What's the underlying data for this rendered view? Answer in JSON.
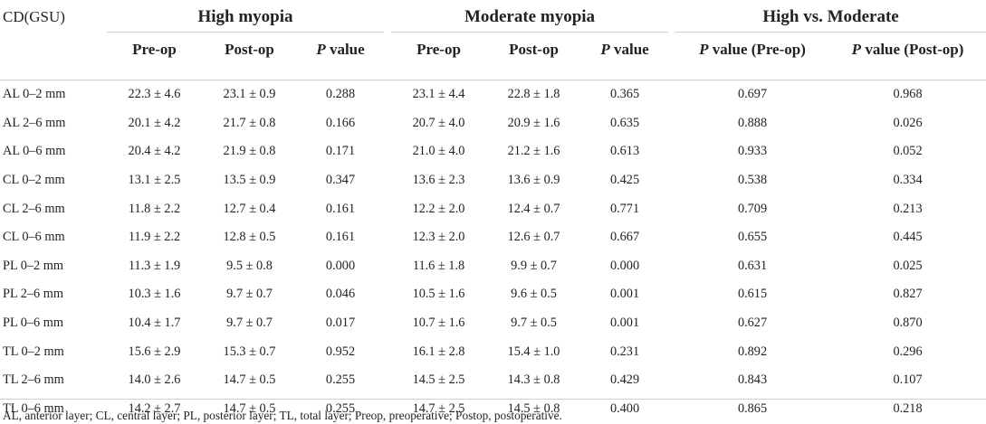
{
  "header": {
    "corner": "CD(GSU)",
    "groups": {
      "high": "High myopia",
      "moderate": "Moderate myopia",
      "comparison": "High vs. Moderate"
    },
    "sub": {
      "pre": "Pre-op",
      "post": "Post-op",
      "p_italic": "P",
      "p_value": " value",
      "p_pre": " value (Pre-op)",
      "p_post": " value (Post-op)"
    }
  },
  "rows": [
    [
      "AL 0–2 mm",
      "22.3 ± 4.6",
      "23.1 ± 0.9",
      "0.288",
      "23.1 ± 4.4",
      "22.8 ± 1.8",
      "0.365",
      "0.697",
      "0.968"
    ],
    [
      "AL 2–6 mm",
      "20.1 ± 4.2",
      "21.7 ± 0.8",
      "0.166",
      "20.7 ± 4.0",
      "20.9 ± 1.6",
      "0.635",
      "0.888",
      "0.026"
    ],
    [
      "AL 0–6 mm",
      "20.4 ± 4.2",
      "21.9 ± 0.8",
      "0.171",
      "21.0 ± 4.0",
      "21.2 ± 1.6",
      "0.613",
      "0.933",
      "0.052"
    ],
    [
      "CL 0–2 mm",
      "13.1 ± 2.5",
      "13.5 ± 0.9",
      "0.347",
      "13.6 ± 2.3",
      "13.6 ± 0.9",
      "0.425",
      "0.538",
      "0.334"
    ],
    [
      "CL 2–6 mm",
      "11.8 ± 2.2",
      "12.7 ± 0.4",
      "0.161",
      "12.2 ± 2.0",
      "12.4 ± 0.7",
      "0.771",
      "0.709",
      "0.213"
    ],
    [
      "CL 0–6 mm",
      "11.9 ± 2.2",
      "12.8 ± 0.5",
      "0.161",
      "12.3 ± 2.0",
      "12.6 ± 0.7",
      "0.667",
      "0.655",
      "0.445"
    ],
    [
      "PL 0–2 mm",
      "11.3 ± 1.9",
      "9.5 ± 0.8",
      "0.000",
      "11.6 ± 1.8",
      "9.9 ± 0.7",
      "0.000",
      "0.631",
      "0.025"
    ],
    [
      "PL 2–6 mm",
      "10.3 ± 1.6",
      "9.7 ± 0.7",
      "0.046",
      "10.5 ± 1.6",
      "9.6 ± 0.5",
      "0.001",
      "0.615",
      "0.827"
    ],
    [
      "PL 0–6 mm",
      "10.4 ± 1.7",
      "9.7 ± 0.7",
      "0.017",
      "10.7 ± 1.6",
      "9.7 ± 0.5",
      "0.001",
      "0.627",
      "0.870"
    ],
    [
      "TL 0–2 mm",
      "15.6 ± 2.9",
      "15.3 ± 0.7",
      "0.952",
      "16.1 ± 2.8",
      "15.4 ± 1.0",
      "0.231",
      "0.892",
      "0.296"
    ],
    [
      "TL 2–6 mm",
      "14.0 ± 2.6",
      "14.7 ± 0.5",
      "0.255",
      "14.5 ± 2.5",
      "14.3 ± 0.8",
      "0.429",
      "0.843",
      "0.107"
    ],
    [
      "TL 0–6 mm",
      "14.2 ± 2.7",
      "14.7 ± 0.5",
      "0.255",
      "14.7 ± 2.5",
      "14.5 ± 0.8",
      "0.400",
      "0.865",
      "0.218"
    ]
  ],
  "footnote": "AL, anterior layer; CL, central layer; PL, posterior layer; TL, total layer; Preop, preoperative; Postop, postoperative."
}
